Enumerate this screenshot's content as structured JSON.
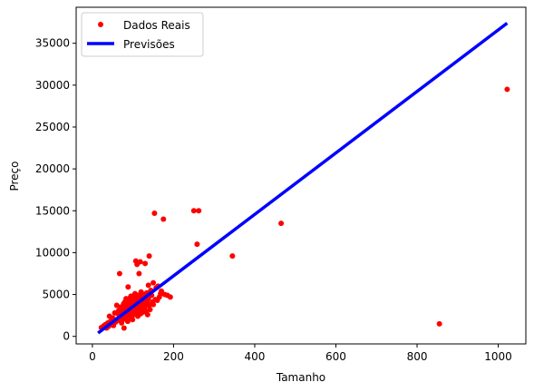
{
  "chart_data": {
    "type": "scatter",
    "xlabel": "Tamanho",
    "ylabel": "Preço",
    "xlim": [
      -40,
      1068
    ],
    "ylim": [
      -900,
      39300
    ],
    "x_ticks": [
      0,
      200,
      400,
      600,
      800,
      1000
    ],
    "y_ticks": [
      0,
      5000,
      10000,
      15000,
      20000,
      25000,
      30000,
      35000
    ],
    "legend_position": "top-left",
    "grid": false,
    "series": [
      {
        "name": "Dados Reais",
        "kind": "scatter",
        "color": "#ff0000",
        "points": [
          [
            22,
            1050
          ],
          [
            28,
            1250
          ],
          [
            32,
            1400
          ],
          [
            35,
            1000
          ],
          [
            38,
            1600
          ],
          [
            40,
            1200
          ],
          [
            42,
            2400
          ],
          [
            45,
            1800
          ],
          [
            48,
            1500
          ],
          [
            50,
            2200
          ],
          [
            52,
            1300
          ],
          [
            55,
            2800
          ],
          [
            57,
            1700
          ],
          [
            60,
            2000
          ],
          [
            60,
            3700
          ],
          [
            62,
            1900
          ],
          [
            65,
            2600
          ],
          [
            65,
            3100
          ],
          [
            67,
            7500
          ],
          [
            68,
            2300
          ],
          [
            70,
            2900
          ],
          [
            70,
            3500
          ],
          [
            72,
            1600
          ],
          [
            73,
            2400
          ],
          [
            75,
            3300
          ],
          [
            75,
            2000
          ],
          [
            77,
            3900
          ],
          [
            78,
            2700
          ],
          [
            78,
            1000
          ],
          [
            80,
            4100
          ],
          [
            80,
            3000
          ],
          [
            81,
            2200
          ],
          [
            82,
            3600
          ],
          [
            83,
            4500
          ],
          [
            84,
            2800
          ],
          [
            85,
            4000
          ],
          [
            85,
            2500
          ],
          [
            86,
            3300
          ],
          [
            87,
            1800
          ],
          [
            88,
            3800
          ],
          [
            88,
            5900
          ],
          [
            89,
            2900
          ],
          [
            90,
            4200
          ],
          [
            90,
            3200
          ],
          [
            91,
            2500
          ],
          [
            92,
            3700
          ],
          [
            93,
            4600
          ],
          [
            94,
            2200
          ],
          [
            95,
            3500
          ],
          [
            95,
            4800
          ],
          [
            96,
            3000
          ],
          [
            97,
            2700
          ],
          [
            98,
            4000
          ],
          [
            98,
            3300
          ],
          [
            99,
            2000
          ],
          [
            100,
            3900
          ],
          [
            100,
            4400
          ],
          [
            101,
            3200
          ],
          [
            102,
            2600
          ],
          [
            103,
            4700
          ],
          [
            104,
            3600
          ],
          [
            105,
            2900
          ],
          [
            105,
            5100
          ],
          [
            106,
            3400
          ],
          [
            107,
            9000
          ],
          [
            108,
            4100
          ],
          [
            108,
            2800
          ],
          [
            109,
            3700
          ],
          [
            110,
            4500
          ],
          [
            110,
            8600
          ],
          [
            111,
            3100
          ],
          [
            112,
            2400
          ],
          [
            113,
            4900
          ],
          [
            114,
            3500
          ],
          [
            115,
            7500
          ],
          [
            115,
            4200
          ],
          [
            116,
            3000
          ],
          [
            117,
            4700
          ],
          [
            118,
            3800
          ],
          [
            118,
            8900
          ],
          [
            119,
            2700
          ],
          [
            120,
            4400
          ],
          [
            120,
            5300
          ],
          [
            121,
            3300
          ],
          [
            122,
            4000
          ],
          [
            123,
            3600
          ],
          [
            124,
            4800
          ],
          [
            125,
            2900
          ],
          [
            126,
            5000
          ],
          [
            127,
            3900
          ],
          [
            128,
            4300
          ],
          [
            129,
            3400
          ],
          [
            130,
            3800
          ],
          [
            130,
            8700
          ],
          [
            131,
            4600
          ],
          [
            132,
            3000
          ],
          [
            134,
            5200
          ],
          [
            135,
            4100
          ],
          [
            136,
            2600
          ],
          [
            138,
            6100
          ],
          [
            138,
            4500
          ],
          [
            140,
            3700
          ],
          [
            140,
            9600
          ],
          [
            142,
            3200
          ],
          [
            144,
            5500
          ],
          [
            146,
            4900
          ],
          [
            148,
            4100
          ],
          [
            150,
            6400
          ],
          [
            150,
            3800
          ],
          [
            153,
            14700
          ],
          [
            155,
            4400
          ],
          [
            157,
            5800
          ],
          [
            160,
            4300
          ],
          [
            162,
            6000
          ],
          [
            165,
            4700
          ],
          [
            168,
            5100
          ],
          [
            170,
            5400
          ],
          [
            175,
            14000
          ],
          [
            178,
            5000
          ],
          [
            185,
            4900
          ],
          [
            192,
            4700
          ],
          [
            250,
            15000
          ],
          [
            258,
            11000
          ],
          [
            262,
            15000
          ],
          [
            345,
            9600
          ],
          [
            465,
            13500
          ],
          [
            855,
            1500
          ],
          [
            1022,
            29500
          ]
        ]
      },
      {
        "name": "Previsões",
        "kind": "line",
        "color": "#0000ff",
        "points": [
          [
            14,
            400
          ],
          [
            1022,
            37400
          ]
        ]
      }
    ]
  }
}
